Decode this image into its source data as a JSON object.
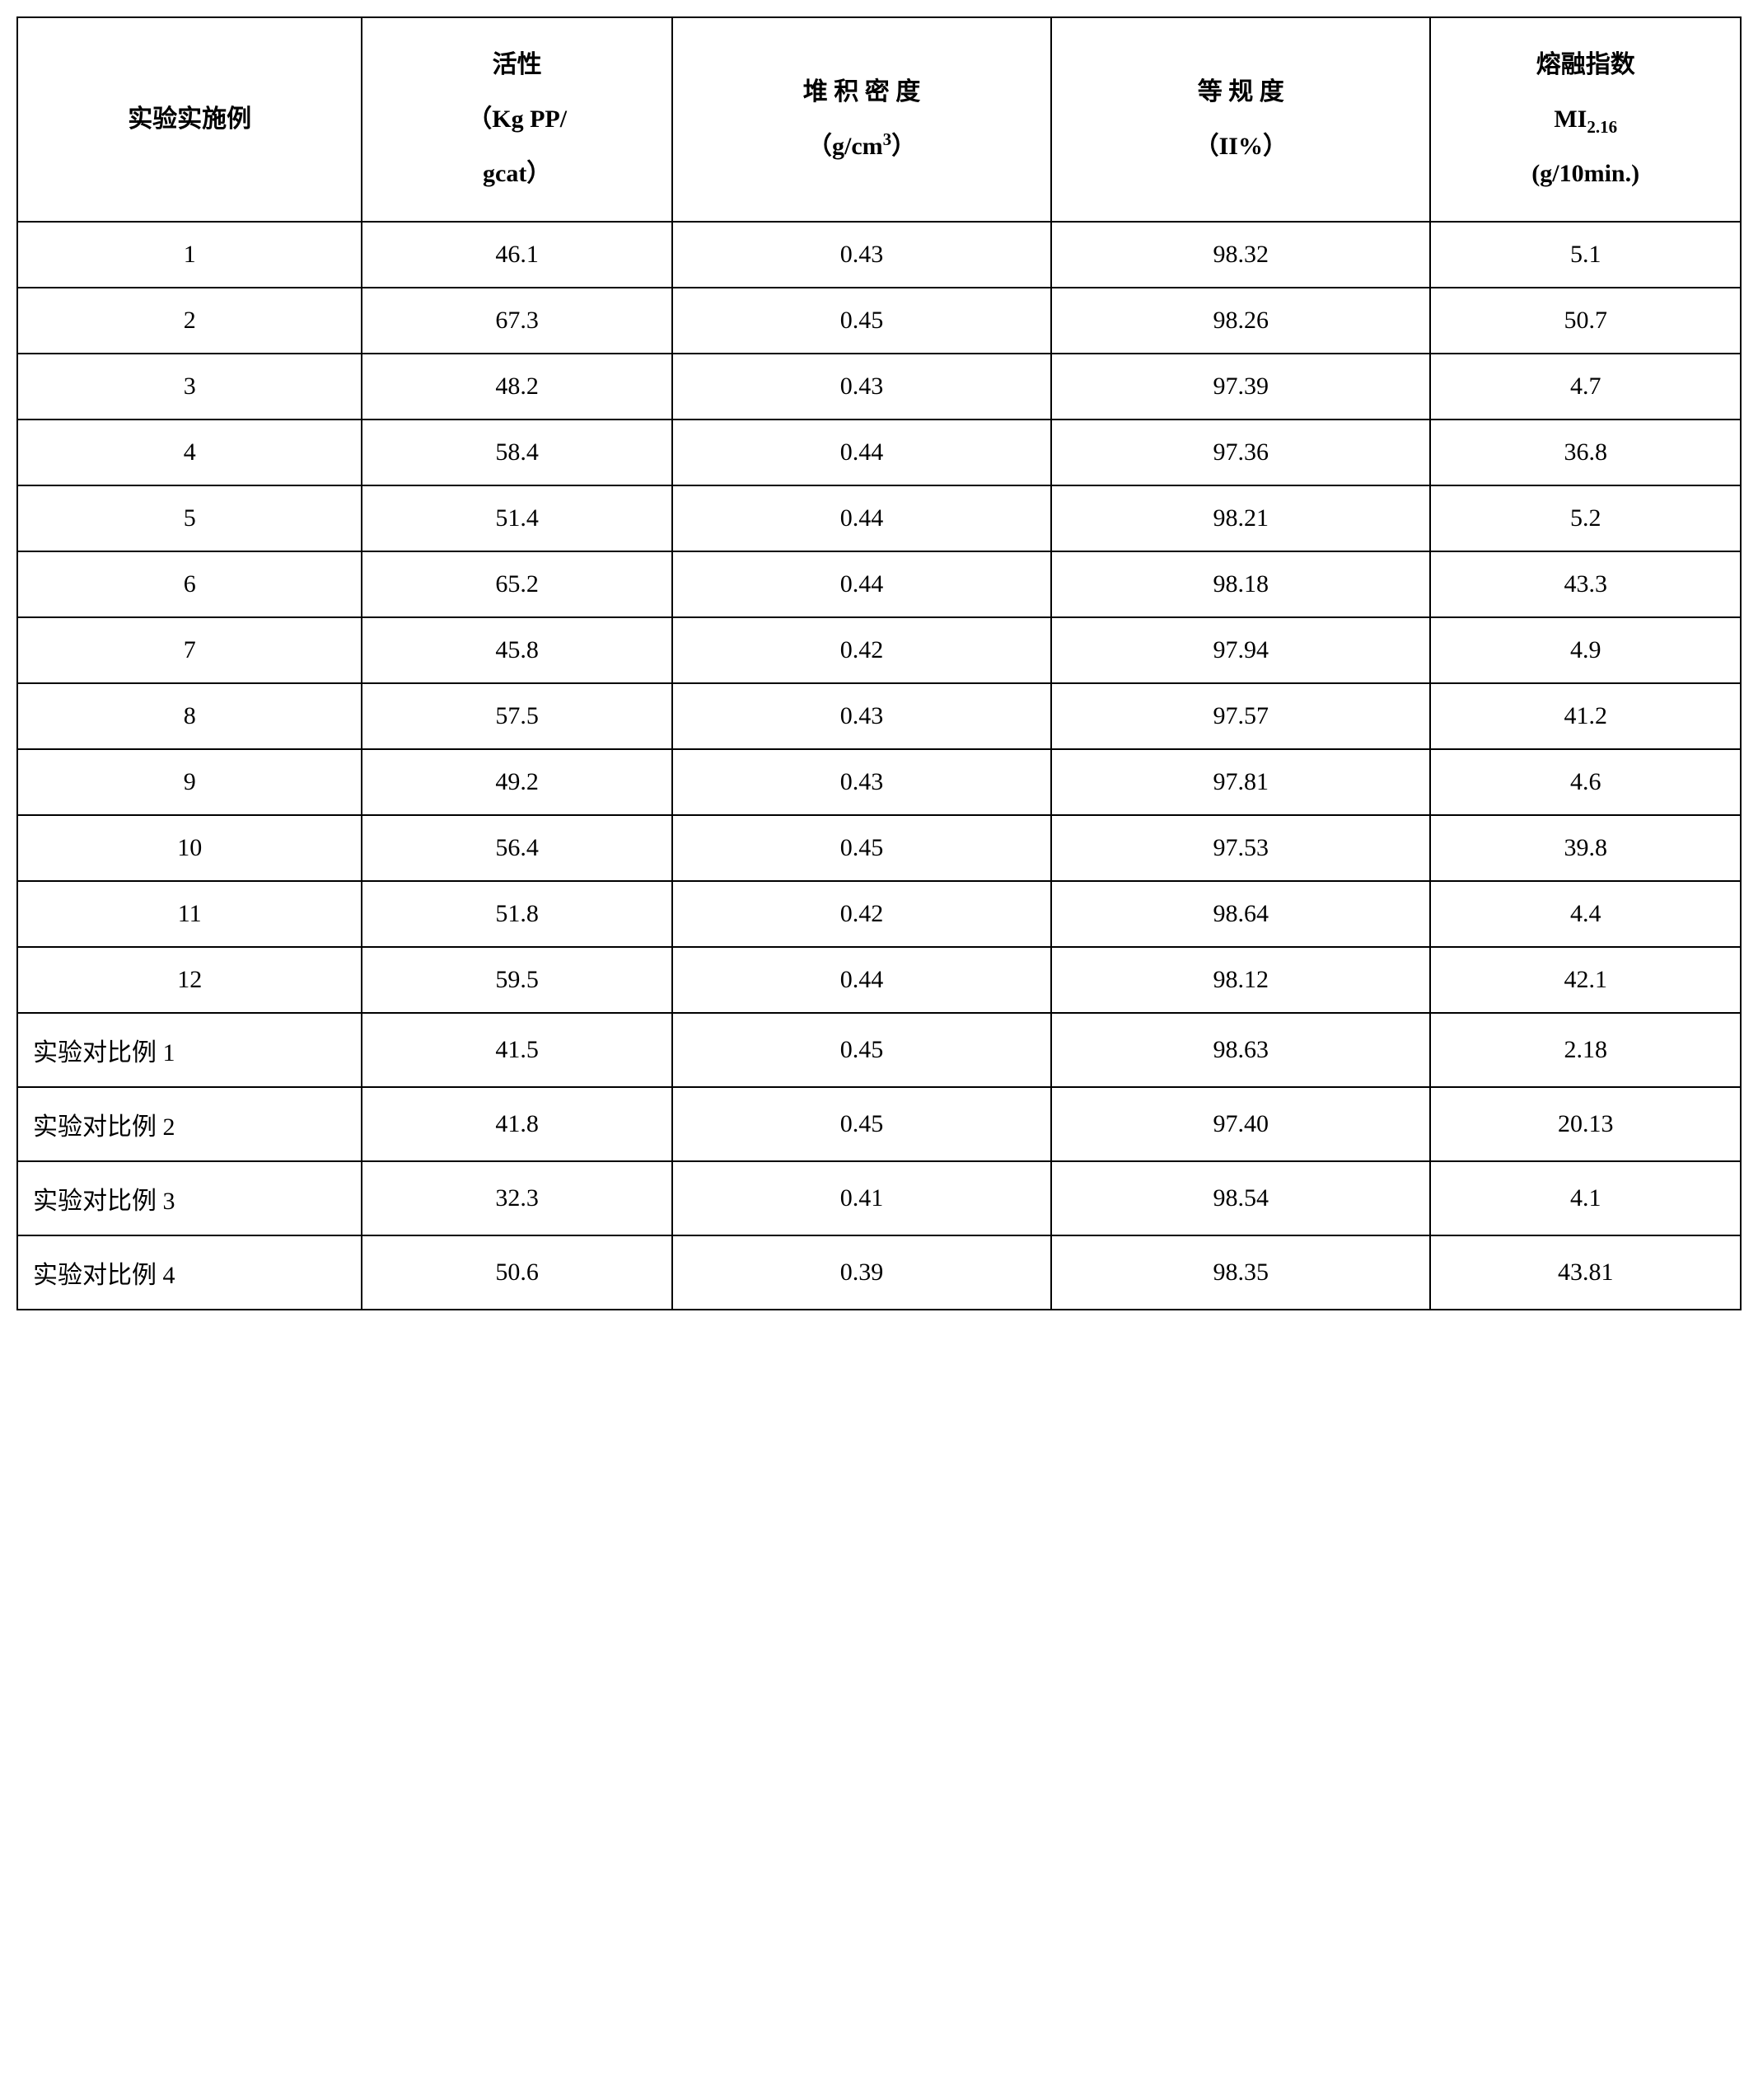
{
  "headers": {
    "c0": "实验实施例",
    "c1_pre": "活性",
    "c1_mid": "（Kg PP/",
    "c1_suf": "gcat）",
    "c2_pre": "堆 积 密 度",
    "c2_mid_a": "（g/cm",
    "c2_mid_b": "）",
    "c3_pre": "等 规 度",
    "c3_mid": "（II%）",
    "c4_pre": "熔融指数",
    "c4_mid_a": "MI",
    "c4_mid_b": "2.16",
    "c4_suf": "(g/10min.)"
  },
  "rows": [
    {
      "label": "1",
      "labelType": "num",
      "c1": "46.1",
      "c2": "0.43",
      "c3": "98.32",
      "c4": "5.1"
    },
    {
      "label": "2",
      "labelType": "num",
      "c1": "67.3",
      "c2": "0.45",
      "c3": "98.26",
      "c4": "50.7"
    },
    {
      "label": "3",
      "labelType": "num",
      "c1": "48.2",
      "c2": "0.43",
      "c3": "97.39",
      "c4": "4.7"
    },
    {
      "label": "4",
      "labelType": "num",
      "c1": "58.4",
      "c2": "0.44",
      "c3": "97.36",
      "c4": "36.8"
    },
    {
      "label": "5",
      "labelType": "num",
      "c1": "51.4",
      "c2": "0.44",
      "c3": "98.21",
      "c4": "5.2"
    },
    {
      "label": "6",
      "labelType": "num",
      "c1": "65.2",
      "c2": "0.44",
      "c3": "98.18",
      "c4": "43.3"
    },
    {
      "label": "7",
      "labelType": "num",
      "c1": "45.8",
      "c2": "0.42",
      "c3": "97.94",
      "c4": "4.9"
    },
    {
      "label": "8",
      "labelType": "num",
      "c1": "57.5",
      "c2": "0.43",
      "c3": "97.57",
      "c4": "41.2"
    },
    {
      "label": "9",
      "labelType": "num",
      "c1": "49.2",
      "c2": "0.43",
      "c3": "97.81",
      "c4": "4.6"
    },
    {
      "label": "10",
      "labelType": "num",
      "c1": "56.4",
      "c2": "0.45",
      "c3": "97.53",
      "c4": "39.8"
    },
    {
      "label": "11",
      "labelType": "num",
      "c1": "51.8",
      "c2": "0.42",
      "c3": "98.64",
      "c4": "4.4"
    },
    {
      "label": "12",
      "labelType": "num",
      "c1": "59.5",
      "c2": "0.44",
      "c3": "98.12",
      "c4": "42.1"
    },
    {
      "label": "实验对比例 1",
      "labelType": "text",
      "c1": "41.5",
      "c2": "0.45",
      "c3": "98.63",
      "c4": "2.18"
    },
    {
      "label": "实验对比例 2",
      "labelType": "text",
      "c1": "41.8",
      "c2": "0.45",
      "c3": "97.40",
      "c4": "20.13"
    },
    {
      "label": "实验对比例 3",
      "labelType": "text",
      "c1": "32.3",
      "c2": "0.41",
      "c3": "98.54",
      "c4": "4.1"
    },
    {
      "label": "实验对比例 4",
      "labelType": "text",
      "c1": "50.6",
      "c2": "0.39",
      "c3": "98.35",
      "c4": "43.81"
    }
  ],
  "style": {
    "border_color": "#000000",
    "background_color": "#ffffff",
    "text_color": "#000000",
    "header_fontsize": 30,
    "cell_fontsize": 30,
    "col_widths_pct": [
      20,
      18,
      22,
      22,
      18
    ]
  }
}
